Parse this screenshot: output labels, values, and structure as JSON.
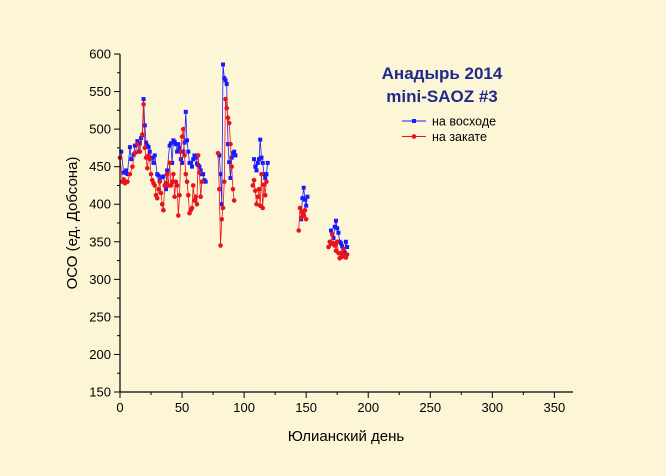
{
  "chart_data": {
    "type": "line",
    "title": "Анадырь 2014",
    "subtitle": "mini-SAOZ #3",
    "xlabel": "Юлианский день",
    "ylabel": "ОСО (ед. Добсона)",
    "xlim": [
      0,
      365
    ],
    "ylim": [
      150,
      600
    ],
    "xticks": [
      0,
      50,
      100,
      150,
      200,
      250,
      300,
      350
    ],
    "yticks": [
      150,
      200,
      250,
      300,
      350,
      400,
      450,
      500,
      550,
      600
    ],
    "xtick_labels": [
      "0",
      "50",
      "100",
      "150",
      "200",
      "250",
      "300",
      "350"
    ],
    "ytick_labels": [
      "150",
      "200",
      "250",
      "300",
      "350",
      "400",
      "450",
      "500",
      "550",
      "600"
    ],
    "legend_position": "top-right",
    "grid": false,
    "colors": {
      "background": "#fdf6d6",
      "axis": "#000000",
      "title": "#1f2a8c"
    },
    "series": [
      {
        "name": "на восходе",
        "color": "#1a1aff",
        "marker": "square",
        "x": [
          1,
          3,
          5,
          6,
          8,
          9,
          11,
          12,
          14,
          15,
          16,
          17,
          18,
          19,
          20,
          21,
          22,
          23,
          24,
          25,
          26,
          27,
          28,
          30,
          31,
          32,
          34,
          35,
          37,
          38,
          40,
          41,
          42,
          43,
          44,
          45,
          46,
          47,
          48,
          49,
          50,
          51,
          52,
          53,
          54,
          55,
          56,
          57,
          58,
          59,
          60,
          61,
          62,
          63,
          64,
          65,
          66,
          67,
          68,
          69,
          80,
          81,
          82,
          83,
          84,
          85,
          86,
          87,
          88,
          89,
          90,
          91,
          92,
          93,
          108,
          109,
          110,
          111,
          112,
          113,
          114,
          115,
          116,
          117,
          118,
          119,
          146,
          147,
          148,
          149,
          150,
          151,
          170,
          171,
          172,
          173,
          174,
          175,
          176,
          177,
          178,
          179,
          180,
          181,
          182,
          183
        ],
        "y": [
          470,
          442,
          445,
          440,
          476,
          460,
          466,
          478,
          484,
          470,
          481,
          488,
          492,
          540,
          505,
          482,
          478,
          476,
          470,
          461,
          462,
          455,
          465,
          440,
          438,
          432,
          436,
          437,
          420,
          445,
          478,
          481,
          455,
          485,
          483,
          480,
          470,
          480,
          475,
          460,
          455,
          470,
          482,
          523,
          485,
          470,
          455,
          455,
          450,
          460,
          465,
          462,
          454,
          452,
          450,
          445,
          440,
          440,
          432,
          430,
          465,
          440,
          400,
          586,
          568,
          565,
          560,
          480,
          456,
          435,
          462,
          468,
          470,
          465,
          460,
          450,
          445,
          455,
          460,
          486,
          462,
          455,
          440,
          435,
          440,
          455,
          380,
          408,
          422,
          406,
          398,
          410,
          365,
          360,
          355,
          370,
          378,
          368,
          362,
          350,
          348,
          344,
          340,
          336,
          350,
          343
        ]
      },
      {
        "name": "на закате",
        "color": "#e8141c",
        "marker": "circle",
        "x": [
          0,
          2,
          3,
          4,
          6,
          8,
          10,
          12,
          14,
          16,
          18,
          19,
          20,
          21,
          22,
          23,
          24,
          25,
          26,
          27,
          28,
          29,
          30,
          31,
          32,
          33,
          34,
          35,
          36,
          37,
          38,
          39,
          40,
          41,
          42,
          43,
          44,
          45,
          46,
          47,
          48,
          49,
          50,
          51,
          52,
          53,
          54,
          55,
          56,
          57,
          58,
          59,
          60,
          61,
          62,
          63,
          64,
          65,
          66,
          79,
          80,
          81,
          82,
          83,
          84,
          85,
          86,
          87,
          88,
          89,
          90,
          91,
          92,
          107,
          108,
          109,
          110,
          111,
          112,
          113,
          114,
          115,
          116,
          117,
          118,
          144,
          145,
          146,
          147,
          148,
          149,
          150,
          168,
          169,
          170,
          171,
          172,
          173,
          174,
          175,
          176,
          177,
          178,
          179,
          180,
          181,
          182,
          183
        ],
        "y": [
          462,
          430,
          433,
          428,
          430,
          440,
          450,
          468,
          480,
          470,
          493,
          533,
          475,
          462,
          448,
          465,
          460,
          440,
          432,
          428,
          425,
          412,
          408,
          420,
          430,
          415,
          400,
          392,
          425,
          428,
          440,
          425,
          455,
          425,
          430,
          440,
          410,
          430,
          425,
          385,
          412,
          470,
          490,
          500,
          465,
          440,
          430,
          412,
          388,
          392,
          395,
          425,
          405,
          410,
          400,
          465,
          442,
          410,
          430,
          468,
          420,
          345,
          380,
          395,
          430,
          540,
          528,
          515,
          508,
          480,
          450,
          420,
          405,
          425,
          432,
          418,
          400,
          410,
          420,
          398,
          440,
          395,
          426,
          412,
          430,
          365,
          395,
          382,
          390,
          385,
          392,
          380,
          343,
          350,
          347,
          360,
          348,
          345,
          338,
          350,
          335,
          328,
          335,
          330,
          340,
          332,
          329,
          333
        ]
      }
    ]
  }
}
